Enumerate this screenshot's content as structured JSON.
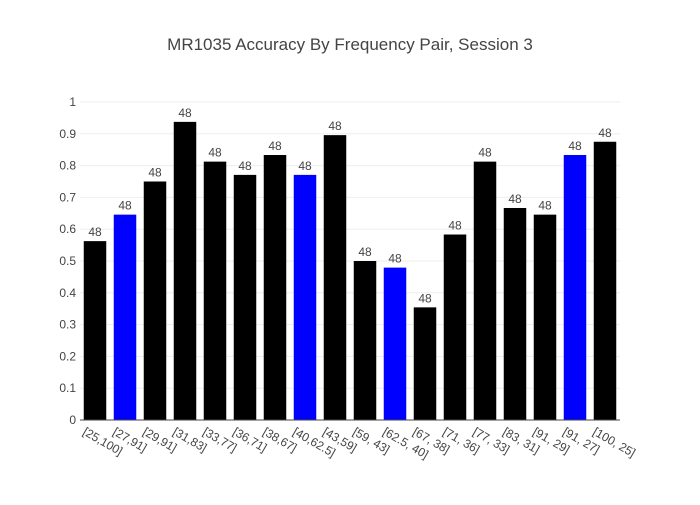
{
  "chart_data": {
    "type": "bar",
    "title": "MR1035 Accuracy By Frequency Pair, Session 3",
    "xlabel": "",
    "ylabel": "",
    "ylim": [
      0,
      1
    ],
    "yticks": [
      "0",
      "0.1",
      "0.2",
      "0.3",
      "0.4",
      "0.5",
      "0.6",
      "0.7",
      "0.8",
      "0.9",
      "1"
    ],
    "grid": true,
    "categories": [
      "[25,100]",
      "[27,91]",
      "[29,91]",
      "[31,83]",
      "[33,77]",
      "[36,71]",
      "[38,67]",
      "[40,62.5]",
      "[43,59]",
      "[59, 43]",
      "[62.5, 40]",
      "[67, 38]",
      "[71, 36]",
      "[77, 33]",
      "[83, 31]",
      "[91, 29]",
      "[91, 27]",
      "[100, 25]"
    ],
    "values": [
      0.5625,
      0.6458,
      0.75,
      0.9375,
      0.8125,
      0.7708,
      0.8333,
      0.7708,
      0.8958,
      0.5,
      0.4792,
      0.3542,
      0.5833,
      0.8125,
      0.6667,
      0.6458,
      0.8333,
      0.875
    ],
    "bar_text": [
      "48",
      "48",
      "48",
      "48",
      "48",
      "48",
      "48",
      "48",
      "48",
      "48",
      "48",
      "48",
      "48",
      "48",
      "48",
      "48",
      "48",
      "48"
    ],
    "bar_colors": [
      "#000000",
      "#0000ff",
      "#000000",
      "#000000",
      "#000000",
      "#000000",
      "#000000",
      "#0000ff",
      "#000000",
      "#000000",
      "#0000ff",
      "#000000",
      "#000000",
      "#000000",
      "#000000",
      "#000000",
      "#0000ff",
      "#000000"
    ]
  }
}
